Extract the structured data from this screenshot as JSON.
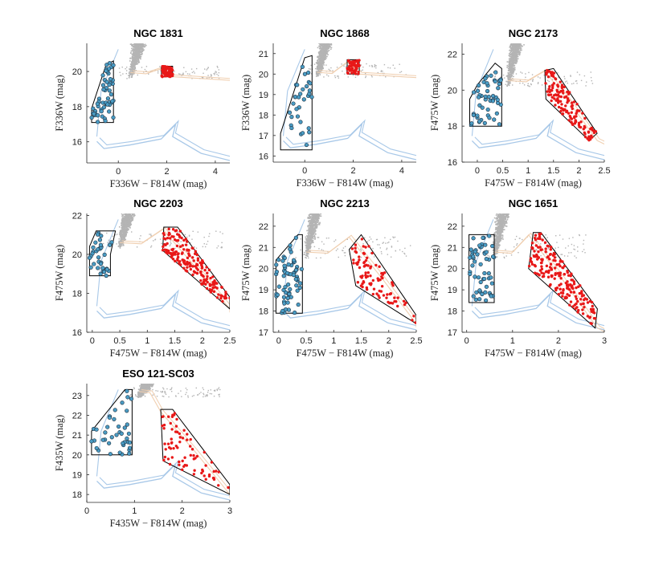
{
  "figure": {
    "background": "#ffffff"
  },
  "colors": {
    "isochrone_blue": "#a8c8e8",
    "isochrone_tan": "#f0cfb0",
    "field_stars": "#b4b4b4",
    "blue_stragglers": "#4a9cc4",
    "red_giants": "#e81818",
    "selection_box": "#000000"
  },
  "chart_data": [
    {
      "type": "scatter",
      "title": "NGC 1831",
      "xlabel": "F336W − F814W (mag)",
      "ylabel": "F336W (mag)",
      "xlim": [
        -1.3,
        4.6
      ],
      "ylim": [
        21.6,
        14.8
      ],
      "xticks": [
        0,
        2,
        4
      ],
      "yticks": [
        16,
        18,
        20
      ],
      "blue_box": [
        [
          -1.1,
          17.1
        ],
        [
          -0.2,
          17.1
        ],
        [
          -0.2,
          20.6
        ],
        [
          -0.5,
          20.4
        ],
        [
          -1.1,
          17.9
        ]
      ],
      "red_box": [
        [
          1.78,
          19.7
        ],
        [
          2.24,
          19.7
        ],
        [
          2.24,
          20.3
        ],
        [
          1.78,
          20.3
        ]
      ],
      "field_x": [
        0.0,
        0.7,
        0.5,
        4.2
      ],
      "field_y": [
        17.5,
        21.6,
        19.6,
        20.3
      ],
      "blue_count": 55,
      "red_count": 90
    },
    {
      "type": "scatter",
      "title": "NGC 1868",
      "xlabel": "F336W − F814W (mag)",
      "ylabel": "F336W (mag)",
      "xlim": [
        -1.3,
        4.6
      ],
      "ylim": [
        21.5,
        15.7
      ],
      "xticks": [
        0,
        2,
        4
      ],
      "yticks": [
        16,
        17,
        18,
        19,
        20,
        21
      ],
      "blue_box": [
        [
          -1.0,
          16.3
        ],
        [
          0.3,
          16.3
        ],
        [
          0.3,
          20.9
        ],
        [
          0.0,
          20.8
        ],
        [
          -1.0,
          17.1
        ]
      ],
      "red_box": [
        [
          1.75,
          20.0
        ],
        [
          2.25,
          20.0
        ],
        [
          2.25,
          20.7
        ],
        [
          1.75,
          20.7
        ]
      ],
      "field_x": [
        0.1,
        0.8,
        0.5,
        4.2
      ],
      "field_y": [
        18.5,
        21.5,
        19.8,
        20.5
      ],
      "blue_count": 32,
      "red_count": 70
    },
    {
      "type": "scatter",
      "title": "NGC 2173",
      "xlabel": "F475W − F814W (mag)",
      "ylabel": "F475W (mag)",
      "xlim": [
        -0.3,
        2.5
      ],
      "ylim": [
        22.6,
        16.0
      ],
      "xticks": [
        0,
        0.5,
        1,
        1.5,
        2,
        2.5
      ],
      "yticks": [
        16,
        18,
        20,
        22
      ],
      "blue_box": [
        [
          -0.15,
          18.0
        ],
        [
          0.48,
          18.0
        ],
        [
          0.48,
          21.2
        ],
        [
          0.35,
          21.5
        ],
        [
          0.0,
          20.3
        ],
        [
          -0.15,
          19.5
        ]
      ],
      "red_box": [
        [
          1.35,
          19.5
        ],
        [
          2.2,
          17.2
        ],
        [
          2.36,
          17.6
        ],
        [
          1.5,
          21.2
        ],
        [
          1.33,
          21.1
        ]
      ],
      "field_x": [
        0.3,
        1.2,
        0.6,
        2.3
      ],
      "field_y": [
        19.5,
        22.6,
        20.2,
        21.0
      ],
      "blue_count": 50,
      "red_count": 140
    },
    {
      "type": "scatter",
      "title": "NGC 2203",
      "xlabel": "F475W − F814W (mag)",
      "ylabel": "F475W (mag)",
      "xlim": [
        -0.1,
        2.5
      ],
      "ylim": [
        22.1,
        16.0
      ],
      "xticks": [
        0,
        0.5,
        1,
        1.5,
        2,
        2.5
      ],
      "yticks": [
        16,
        18,
        20,
        22
      ],
      "blue_box": [
        [
          -0.05,
          18.9
        ],
        [
          0.33,
          18.9
        ],
        [
          0.33,
          20.0
        ],
        [
          0.42,
          21.2
        ],
        [
          0.07,
          21.2
        ],
        [
          -0.05,
          20.4
        ]
      ],
      "red_box": [
        [
          1.3,
          21.4
        ],
        [
          1.28,
          20.2
        ],
        [
          2.5,
          17.2
        ],
        [
          2.5,
          17.8
        ],
        [
          1.55,
          21.4
        ]
      ],
      "field_x": [
        0.2,
        1.1,
        0.5,
        2.4
      ],
      "field_y": [
        19.5,
        22.1,
        20.3,
        21.2
      ],
      "blue_count": 35,
      "red_count": 190
    },
    {
      "type": "scatter",
      "title": "NGC 2213",
      "xlabel": "F475W − F814W (mag)",
      "ylabel": "F475W (mag)",
      "xlim": [
        -0.1,
        2.5
      ],
      "ylim": [
        22.6,
        17.0
      ],
      "xticks": [
        0,
        0.5,
        1,
        1.5,
        2,
        2.5
      ],
      "yticks": [
        17,
        18,
        19,
        20,
        21,
        22
      ],
      "blue_box": [
        [
          -0.05,
          17.9
        ],
        [
          0.43,
          17.9
        ],
        [
          0.43,
          21.6
        ],
        [
          0.35,
          21.6
        ],
        [
          -0.05,
          20.4
        ]
      ],
      "red_box": [
        [
          1.28,
          20.9
        ],
        [
          1.4,
          19.2
        ],
        [
          2.5,
          17.4
        ],
        [
          2.5,
          17.8
        ],
        [
          1.5,
          21.6
        ]
      ],
      "field_x": [
        0.3,
        1.2,
        0.5,
        2.4
      ],
      "field_y": [
        19.5,
        22.6,
        20.5,
        21.5
      ],
      "blue_count": 65,
      "red_count": 95
    },
    {
      "type": "scatter",
      "title": "NGC 1651",
      "xlabel": "F475W − F814W (mag)",
      "ylabel": "F475W (mag)",
      "xlim": [
        -0.1,
        3.0
      ],
      "ylim": [
        22.6,
        17.0
      ],
      "xticks": [
        0,
        1,
        2,
        3
      ],
      "yticks": [
        17,
        18,
        19,
        20,
        21,
        22
      ],
      "blue_box": [
        [
          0.05,
          18.4
        ],
        [
          0.6,
          18.4
        ],
        [
          0.6,
          21.6
        ],
        [
          0.05,
          21.6
        ]
      ],
      "red_box": [
        [
          1.45,
          21.7
        ],
        [
          1.35,
          20.0
        ],
        [
          2.8,
          17.2
        ],
        [
          2.85,
          18.1
        ],
        [
          1.62,
          21.7
        ]
      ],
      "field_x": [
        0.4,
        1.3,
        0.6,
        2.6
      ],
      "field_y": [
        19.8,
        22.6,
        20.5,
        21.6
      ],
      "blue_count": 55,
      "red_count": 200
    },
    {
      "type": "scatter",
      "title": "ESO 121-SC03",
      "xlabel": "F435W − F814W (mag)",
      "ylabel": "F435W (mag)",
      "xlim": [
        0,
        3.0
      ],
      "ylim": [
        23.6,
        17.6
      ],
      "xticks": [
        0,
        1,
        2,
        3
      ],
      "yticks": [
        18,
        19,
        20,
        21,
        22,
        23
      ],
      "blue_box": [
        [
          0.1,
          20.0
        ],
        [
          0.95,
          20.0
        ],
        [
          0.95,
          23.3
        ],
        [
          0.8,
          23.3
        ],
        [
          0.1,
          21.2
        ]
      ],
      "red_box": [
        [
          1.55,
          22.3
        ],
        [
          1.6,
          19.7
        ],
        [
          3.0,
          18.0
        ],
        [
          3.0,
          18.5
        ],
        [
          1.8,
          22.3
        ]
      ],
      "field_x": [
        0.9,
        1.6,
        1.1,
        2.8
      ],
      "field_y": [
        22.4,
        23.6,
        22.9,
        23.4
      ],
      "blue_count": 40,
      "red_count": 75
    }
  ]
}
